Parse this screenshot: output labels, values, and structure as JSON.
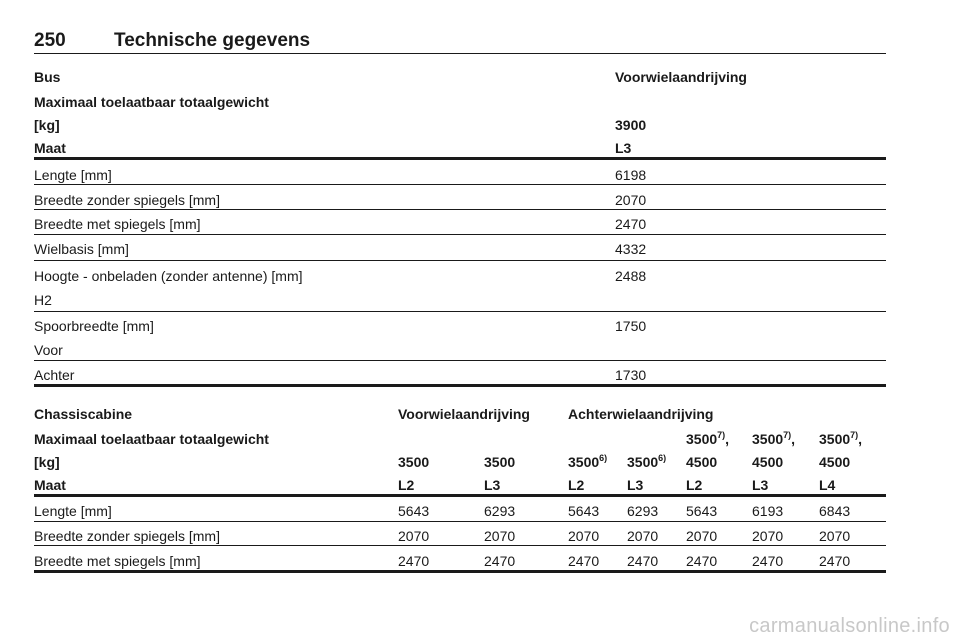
{
  "page": {
    "number": "250",
    "title": "Technische gegevens"
  },
  "table1": {
    "h1_left": "Bus",
    "h1_right": "Voorwielaandrijving",
    "h2_left": "Maximaal toelaatbaar totaalgewicht",
    "h3_left": "[kg]",
    "h3_right": "3900",
    "h4_left": "Maat",
    "h4_right": "L3",
    "rows": [
      {
        "label": "Lengte [mm]",
        "value": "6198"
      },
      {
        "label": "Breedte zonder spiegels [mm]",
        "value": "2070"
      },
      {
        "label": "Breedte met spiegels [mm]",
        "value": "2470"
      },
      {
        "label": "Wielbasis [mm]",
        "value": "4332"
      },
      {
        "label": "Hoogte - onbeladen (zonder antenne) [mm]",
        "sub": "H2",
        "value": "2488"
      },
      {
        "label": "Spoorbreedte [mm]",
        "sub": "Voor",
        "value": "1750"
      },
      {
        "label": "Achter",
        "value": "1730"
      }
    ]
  },
  "table2": {
    "h1_left": "Chassiscabine",
    "h1_mid": "Voorwielaandrijving",
    "h1_right": "Achterwielaandrijving",
    "h2_left": "Maximaal toelaatbaar totaalgewicht",
    "h3_left": "[kg]",
    "weights": [
      "3500",
      "3500",
      "3500",
      "3500",
      "3500",
      "3500",
      "3500"
    ],
    "weights_sup": [
      "",
      "",
      "6)",
      "6)",
      "7)",
      "7)",
      "7)"
    ],
    "weights_suffix": [
      "",
      "",
      "",
      "",
      ",",
      ",",
      ","
    ],
    "weights_line2": [
      "",
      "",
      "",
      "",
      "4500",
      "4500",
      "4500"
    ],
    "h4_left": "Maat",
    "sizes": [
      "L2",
      "L3",
      "L2",
      "L3",
      "L2",
      "L3",
      "L4"
    ],
    "rows": [
      {
        "label": "Lengte [mm]",
        "values": [
          "5643",
          "6293",
          "5643",
          "6293",
          "5643",
          "6193",
          "6843"
        ]
      },
      {
        "label": "Breedte zonder spiegels [mm]",
        "values": [
          "2070",
          "2070",
          "2070",
          "2070",
          "2070",
          "2070",
          "2070"
        ]
      },
      {
        "label": "Breedte met spiegels [mm]",
        "values": [
          "2470",
          "2470",
          "2470",
          "2470",
          "2470",
          "2470",
          "2470"
        ]
      }
    ]
  },
  "watermark": "carmanualsonline.info"
}
